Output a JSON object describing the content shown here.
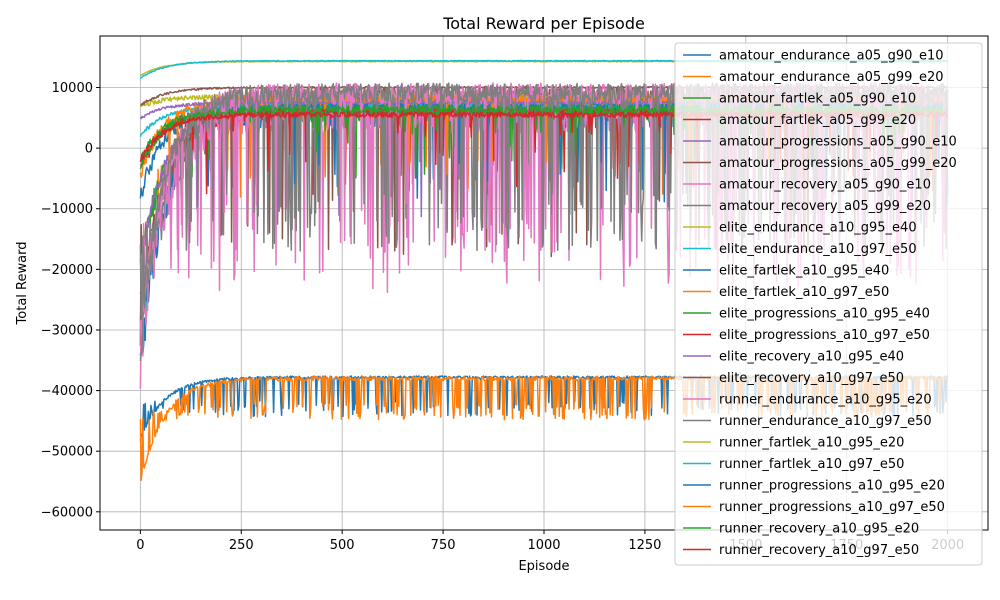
{
  "chart_data": {
    "type": "line",
    "title": "Total Reward per Episode",
    "xlabel": "Episode",
    "ylabel": "Total Reward",
    "xlim": [
      -100,
      2100
    ],
    "ylim": [
      -63000,
      18500
    ],
    "xticks": [
      0,
      250,
      500,
      750,
      1000,
      1250,
      1500,
      1750,
      2000
    ],
    "yticks": [
      -60000,
      -50000,
      -40000,
      -30000,
      -20000,
      -10000,
      0,
      10000
    ],
    "grid": true,
    "legend_position": "upper-right",
    "series": [
      {
        "name": "amatour_endurance_a05_g90_e10",
        "color": "#1f77b4",
        "start": -36000,
        "plateau": 6000,
        "noise": 4000,
        "drops": 0.02,
        "dropTo": -6000
      },
      {
        "name": "amatour_endurance_a05_g99_e20",
        "color": "#ff7f0e",
        "start": -30000,
        "plateau": 7500,
        "noise": 3000,
        "drops": 0.04,
        "dropTo": -5000
      },
      {
        "name": "amatour_fartlek_a05_g90_e10",
        "color": "#2ca02c",
        "start": -20000,
        "plateau": 6200,
        "noise": 2500,
        "drops": 0.03,
        "dropTo": -3000
      },
      {
        "name": "amatour_fartlek_a05_g99_e20",
        "color": "#d62728",
        "start": -25000,
        "plateau": 5800,
        "noise": 1500,
        "drops": 0.02,
        "dropTo": -5000
      },
      {
        "name": "amatour_progressions_a05_g90_e10",
        "color": "#9467bd",
        "start": -20000,
        "plateau": 7000,
        "noise": 1200,
        "drops": 0.01,
        "dropTo": -9000
      },
      {
        "name": "amatour_progressions_a05_g99_e20",
        "color": "#8c564b",
        "start": -30000,
        "plateau": 8000,
        "noise": 3000,
        "drops": 0.05,
        "dropTo": -13000
      },
      {
        "name": "amatour_recovery_a05_g90_e10",
        "color": "#e377c2",
        "start": -36000,
        "plateau": 6000,
        "noise": 5000,
        "drops": 0.12,
        "dropTo": -18000
      },
      {
        "name": "amatour_recovery_a05_g99_e20",
        "color": "#7f7f7f",
        "start": -33000,
        "plateau": 8000,
        "noise": 3500,
        "drops": 0.14,
        "dropTo": -12000
      },
      {
        "name": "elite_endurance_a10_g95_e40",
        "color": "#bcbd22",
        "start": 7000,
        "plateau": 8500,
        "noise": 500,
        "drops": 0.0,
        "dropTo": 0
      },
      {
        "name": "elite_endurance_a10_g97_e50",
        "color": "#17becf",
        "start": 2000,
        "plateau": 7000,
        "noise": 400,
        "drops": 0.0,
        "dropTo": 0
      },
      {
        "name": "elite_fartlek_a10_g95_e40",
        "color": "#1f77b4",
        "start": -8000,
        "plateau": 6800,
        "noise": 1500,
        "drops": 0.03,
        "dropTo": -4000
      },
      {
        "name": "elite_fartlek_a10_g97_e50",
        "color": "#ff7f0e",
        "start": -4000,
        "plateau": 8000,
        "noise": 1200,
        "drops": 0.02,
        "dropTo": -2000
      },
      {
        "name": "elite_progressions_a10_g95_e40",
        "color": "#2ca02c",
        "start": -2000,
        "plateau": 6500,
        "noise": 800,
        "drops": 0.02,
        "dropTo": -1000
      },
      {
        "name": "elite_progressions_a10_g97_e50",
        "color": "#d62728",
        "start": -3000,
        "plateau": 6000,
        "noise": 700,
        "drops": 0.02,
        "dropTo": -2000
      },
      {
        "name": "elite_recovery_a10_g95_e40",
        "color": "#9467bd",
        "start": 5000,
        "plateau": 7500,
        "noise": 300,
        "drops": 0.0,
        "dropTo": 0
      },
      {
        "name": "elite_recovery_a10_g97_e50",
        "color": "#8c564b",
        "start": 7000,
        "plateau": 10000,
        "noise": 200,
        "drops": 0.0,
        "dropTo": 0
      },
      {
        "name": "runner_endurance_a10_g95_e20",
        "color": "#e377c2",
        "start": -30000,
        "plateau": 9000,
        "noise": 2500,
        "drops": 0.06,
        "dropTo": -14000
      },
      {
        "name": "runner_endurance_a10_g97_e50",
        "color": "#7f7f7f",
        "start": -30000,
        "plateau": 9000,
        "noise": 2500,
        "drops": 0.05,
        "dropTo": -13000
      },
      {
        "name": "runner_fartlek_a10_g95_e20",
        "color": "#bcbd22",
        "start": 12000,
        "plateau": 14300,
        "noise": 100,
        "drops": 0.0,
        "dropTo": 0
      },
      {
        "name": "runner_fartlek_a10_g97_e50",
        "color": "#17becf",
        "start": 11500,
        "plateau": 14400,
        "noise": 100,
        "drops": 0.0,
        "dropTo": 0
      },
      {
        "name": "runner_progressions_a10_g95_e20",
        "color": "#1f77b4",
        "start": -48000,
        "plateau": -37800,
        "noise": 300,
        "drops": 0.18,
        "dropTo": -43000
      },
      {
        "name": "runner_progressions_a10_g97_e50",
        "color": "#ff7f0e",
        "start": -55000,
        "plateau": -38000,
        "noise": 500,
        "drops": 0.22,
        "dropTo": -43500
      },
      {
        "name": "runner_recovery_a10_g95_e20",
        "color": "#2ca02c",
        "start": -3000,
        "plateau": 6200,
        "noise": 800,
        "drops": 0.02,
        "dropTo": 3000
      },
      {
        "name": "runner_recovery_a10_g97_e50",
        "color": "#d62728",
        "start": -2000,
        "plateau": 5500,
        "noise": 600,
        "drops": 0.02,
        "dropTo": 2000
      }
    ]
  }
}
